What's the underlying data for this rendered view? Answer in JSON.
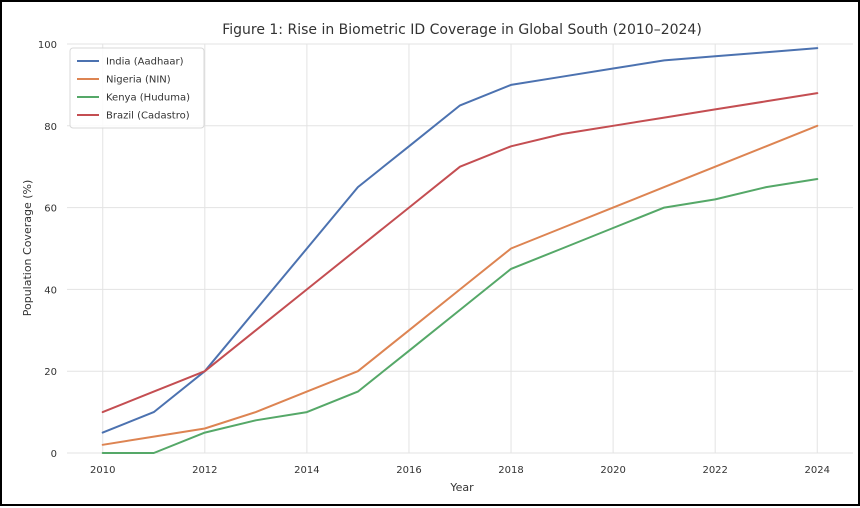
{
  "chart_data": {
    "type": "line",
    "title": "Figure 1: Rise in Biometric ID Coverage in Global South (2010–2024)",
    "xlabel": "Year",
    "ylabel": "Population Coverage (%)",
    "xlim": [
      2009.3,
      2024.7
    ],
    "ylim": [
      0,
      100
    ],
    "x": [
      2010,
      2011,
      2012,
      2013,
      2014,
      2015,
      2016,
      2017,
      2018,
      2019,
      2020,
      2021,
      2022,
      2023,
      2024
    ],
    "xticks": [
      2010,
      2012,
      2014,
      2016,
      2018,
      2020,
      2022,
      2024
    ],
    "yticks": [
      0,
      20,
      40,
      60,
      80,
      100
    ],
    "grid": true,
    "legend": "top-left",
    "series": [
      {
        "name": "India (Aadhaar)",
        "color": "#4c72b0",
        "values": [
          5,
          10,
          20,
          35,
          50,
          65,
          75,
          85,
          90,
          92,
          94,
          96,
          97,
          98,
          99
        ]
      },
      {
        "name": "Nigeria (NIN)",
        "color": "#dd8452",
        "values": [
          2,
          4,
          6,
          10,
          15,
          20,
          30,
          40,
          50,
          55,
          60,
          65,
          70,
          75,
          80
        ]
      },
      {
        "name": "Kenya (Huduma)",
        "color": "#55a868",
        "values": [
          0,
          0,
          5,
          8,
          10,
          15,
          25,
          35,
          45,
          50,
          55,
          60,
          62,
          65,
          67
        ]
      },
      {
        "name": "Brazil (Cadastro)",
        "color": "#c44e52",
        "values": [
          10,
          15,
          20,
          30,
          40,
          50,
          60,
          70,
          75,
          78,
          80,
          82,
          84,
          86,
          88
        ]
      }
    ]
  }
}
